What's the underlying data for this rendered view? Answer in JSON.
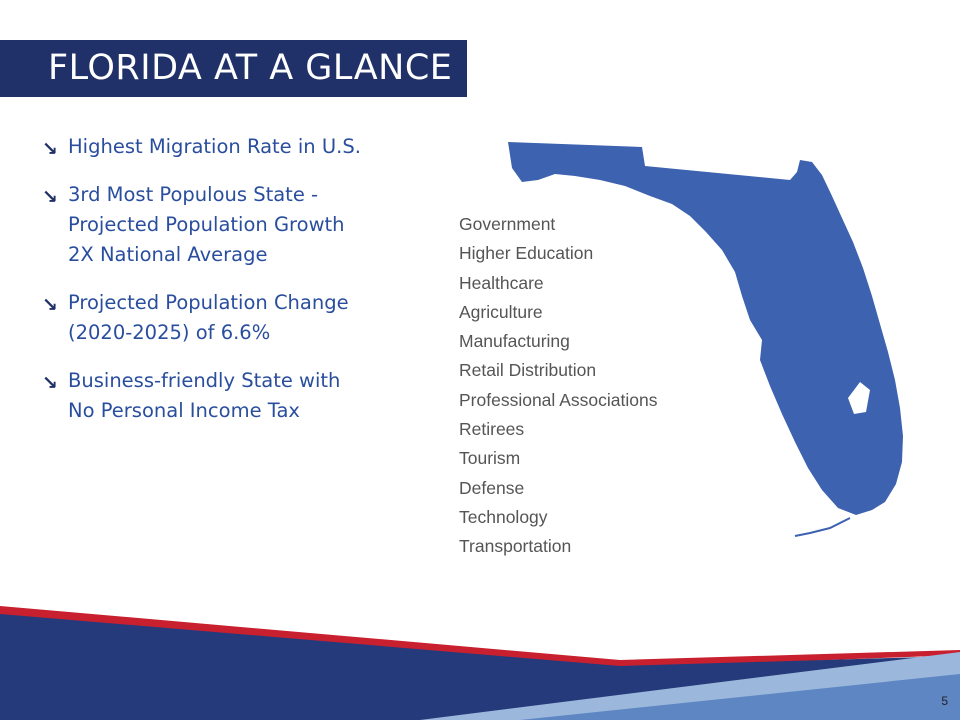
{
  "header": {
    "title": "FLORIDA AT A GLANCE"
  },
  "bullets": [
    {
      "lines": [
        "Highest Migration Rate in U.S."
      ]
    },
    {
      "lines": [
        "3rd Most Populous State -",
        "Projected Population Growth",
        "2X National Average"
      ]
    },
    {
      "lines": [
        "Projected Population Change",
        "(2020-2025) of 6.6%"
      ]
    },
    {
      "lines": [
        "Business-friendly State with",
        "No Personal Income Tax"
      ]
    }
  ],
  "bullet_icon": "arrow-down-right-icon",
  "industries": [
    "Government",
    "Higher Education",
    "Healthcare",
    "Agriculture",
    "Manufacturing",
    "Retail Distribution",
    "Professional Associations",
    "Retirees",
    "Tourism",
    "Defense",
    "Technology",
    "Transportation"
  ],
  "footer": {
    "page_number": "5"
  },
  "colors": {
    "title_bg": "#1f3168",
    "bullet_text": "#2a4e9e",
    "map_fill": "#3d62b0",
    "stripe_red": "#c8202f",
    "stripe_navy": "#253a7a",
    "stripe_light": "#9bb8dc"
  }
}
